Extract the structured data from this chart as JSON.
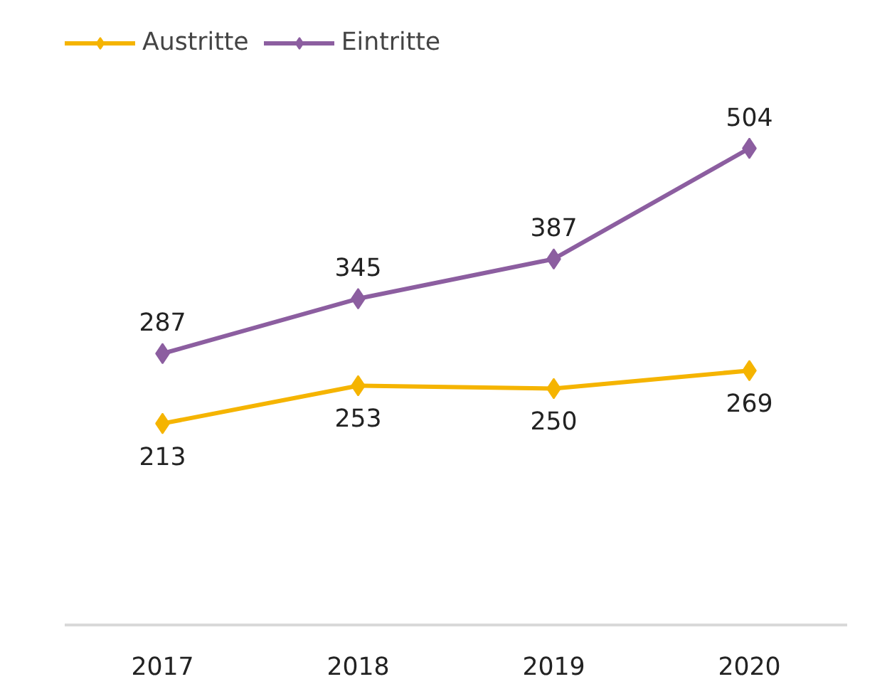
{
  "chart_data": {
    "type": "line",
    "categories": [
      "2017",
      "2018",
      "2019",
      "2020"
    ],
    "series": [
      {
        "name": "Austritte",
        "color": "#f5b400",
        "values": [
          213,
          253,
          250,
          269
        ]
      },
      {
        "name": "Eintritte",
        "color": "#8c5ea0",
        "values": [
          287,
          345,
          387,
          504
        ]
      }
    ],
    "data_labels": true,
    "marker": "diamond",
    "line_style": "solid",
    "grid": false,
    "legend": "top left",
    "tick_labels": "x"
  }
}
